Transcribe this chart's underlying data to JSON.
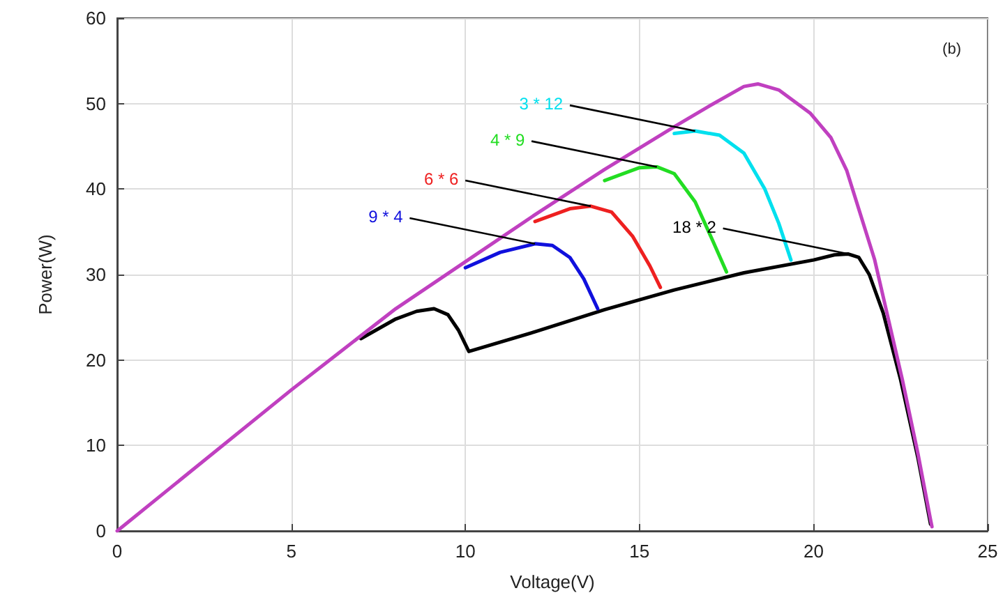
{
  "chart_data": {
    "type": "line",
    "xlabel": "Voltage(V)",
    "ylabel": "Power(W)",
    "xlim": [
      0,
      25
    ],
    "xticks": [
      0,
      5,
      10,
      15,
      20,
      25
    ],
    "ylim": [
      0,
      60
    ],
    "yticks": [
      0,
      10,
      20,
      30,
      40,
      50,
      60
    ],
    "grid": true,
    "marker": "none",
    "annotations": [
      "(b)"
    ],
    "series": [
      {
        "name": "18 * 2",
        "color": "#000000",
        "x": [
          7,
          8,
          8.6,
          9.1,
          9.5,
          9.8,
          10.1,
          12,
          14,
          16,
          18,
          20,
          20.6,
          21,
          21.3,
          21.6,
          22,
          22.5,
          23,
          23.36
        ],
        "values": [
          22.5,
          24.8,
          25.7,
          26,
          25.3,
          23.5,
          21,
          23.3,
          25.9,
          28.2,
          30.2,
          31.7,
          32.3,
          32.4,
          32,
          30,
          25.5,
          17.7,
          8.5,
          0.8
        ]
      },
      {
        "name": "9 * 4",
        "color": "#1010dd",
        "x": [
          10,
          11,
          12,
          12.5,
          13,
          13.4,
          13.8
        ],
        "values": [
          30.8,
          32.6,
          33.6,
          33.4,
          32,
          29.5,
          26
        ]
      },
      {
        "name": "6 * 6",
        "color": "#ee2020",
        "x": [
          12,
          13,
          13.6,
          14.2,
          14.8,
          15.3,
          15.6
        ],
        "values": [
          36.2,
          37.7,
          38,
          37.3,
          34.5,
          31,
          28.5
        ]
      },
      {
        "name": "4 * 9",
        "color": "#22dd22",
        "x": [
          14,
          15,
          15.5,
          16,
          16.6,
          17.1,
          17.5
        ],
        "values": [
          41,
          42.5,
          42.6,
          41.8,
          38.5,
          34,
          30.3
        ]
      },
      {
        "name": "3 * 12",
        "color": "#00e0ee",
        "x": [
          16,
          16.6,
          17.3,
          18,
          18.6,
          19,
          19.35
        ],
        "values": [
          46.5,
          46.8,
          46.3,
          44.2,
          40,
          36,
          31.7
        ]
      },
      {
        "color": "#c040c0",
        "x": [
          0,
          2,
          5,
          8,
          10,
          12,
          14,
          16,
          17,
          18,
          18.4,
          19,
          19.9,
          20.5,
          20.95,
          21.75,
          22.55,
          23,
          23.36,
          23.4
        ],
        "values": [
          0,
          6.6,
          16.5,
          26,
          31.5,
          37,
          42.3,
          47.3,
          49.7,
          52,
          52.3,
          51.6,
          48.9,
          46,
          42.2,
          31.8,
          17.7,
          9,
          1.3,
          0.5
        ]
      }
    ]
  }
}
